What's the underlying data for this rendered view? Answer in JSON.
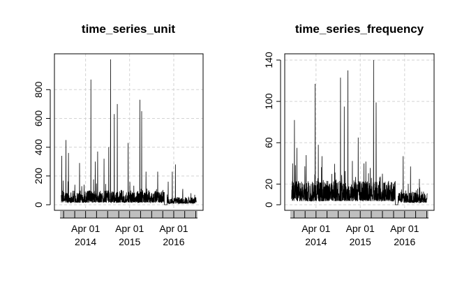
{
  "chart_data": [
    {
      "type": "line",
      "title": "time_series_unit",
      "xlabel": "",
      "ylabel": "",
      "ylim": [
        0,
        1020
      ],
      "yticks": [
        0,
        200,
        400,
        600,
        800
      ],
      "x_range": [
        "2013-09-01",
        "2016-10-15"
      ],
      "x_ticks": [
        {
          "date": "2014-04-01",
          "line1": "Apr 01",
          "line2": "2014"
        },
        {
          "date": "2015-04-01",
          "line1": "Apr 01",
          "line2": "2015"
        },
        {
          "date": "2016-04-01",
          "line1": "Apr 01",
          "line2": "2016"
        }
      ],
      "grid": true,
      "baseline_level": 60,
      "series": [
        {
          "values_description_free": true,
          "peaks": [
            {
              "date": "2013-09-15",
              "value": 340
            },
            {
              "date": "2013-10-20",
              "value": 450
            },
            {
              "date": "2013-11-10",
              "value": 360
            },
            {
              "date": "2014-02-10",
              "value": 290
            },
            {
              "date": "2014-05-15",
              "value": 870
            },
            {
              "date": "2014-06-20",
              "value": 300
            },
            {
              "date": "2014-07-10",
              "value": 370
            },
            {
              "date": "2014-09-01",
              "value": 320
            },
            {
              "date": "2014-10-10",
              "value": 400
            },
            {
              "date": "2014-10-25",
              "value": 1010
            },
            {
              "date": "2014-11-25",
              "value": 630
            },
            {
              "date": "2014-12-20",
              "value": 700
            },
            {
              "date": "2015-03-20",
              "value": 430
            },
            {
              "date": "2015-06-25",
              "value": 730
            },
            {
              "date": "2015-07-10",
              "value": 650
            },
            {
              "date": "2015-08-15",
              "value": 230
            },
            {
              "date": "2015-11-20",
              "value": 230
            },
            {
              "date": "2016-02-15",
              "value": 160
            },
            {
              "date": "2016-03-20",
              "value": 230
            },
            {
              "date": "2016-04-15",
              "value": 280
            },
            {
              "date": "2016-06-15",
              "value": 110
            }
          ]
        }
      ]
    },
    {
      "type": "line",
      "title": "time_series_frequency",
      "xlabel": "",
      "ylabel": "",
      "ylim": [
        0,
        142
      ],
      "yticks": [
        0,
        20,
        60,
        100,
        140
      ],
      "x_range": [
        "2013-09-01",
        "2016-10-15"
      ],
      "x_ticks": [
        {
          "date": "2014-04-01",
          "line1": "Apr 01",
          "line2": "2014"
        },
        {
          "date": "2015-04-01",
          "line1": "Apr 01",
          "line2": "2015"
        },
        {
          "date": "2016-04-01",
          "line1": "Apr 01",
          "line2": "2016"
        }
      ],
      "grid": true,
      "baseline_level": 14,
      "series": [
        {
          "peaks": [
            {
              "date": "2013-09-20",
              "value": 40
            },
            {
              "date": "2013-10-05",
              "value": 82
            },
            {
              "date": "2013-10-25",
              "value": 55
            },
            {
              "date": "2014-01-10",
              "value": 48
            },
            {
              "date": "2014-03-25",
              "value": 117
            },
            {
              "date": "2014-04-20",
              "value": 58
            },
            {
              "date": "2014-05-20",
              "value": 47
            },
            {
              "date": "2014-10-20",
              "value": 123
            },
            {
              "date": "2014-11-20",
              "value": 95
            },
            {
              "date": "2014-12-20",
              "value": 130
            },
            {
              "date": "2015-03-15",
              "value": 65
            },
            {
              "date": "2015-05-01",
              "value": 40
            },
            {
              "date": "2015-07-20",
              "value": 140
            },
            {
              "date": "2015-08-10",
              "value": 99
            },
            {
              "date": "2015-10-01",
              "value": 30
            },
            {
              "date": "2016-03-20",
              "value": 47
            },
            {
              "date": "2016-05-20",
              "value": 37
            },
            {
              "date": "2016-08-01",
              "value": 25
            }
          ]
        }
      ]
    }
  ]
}
